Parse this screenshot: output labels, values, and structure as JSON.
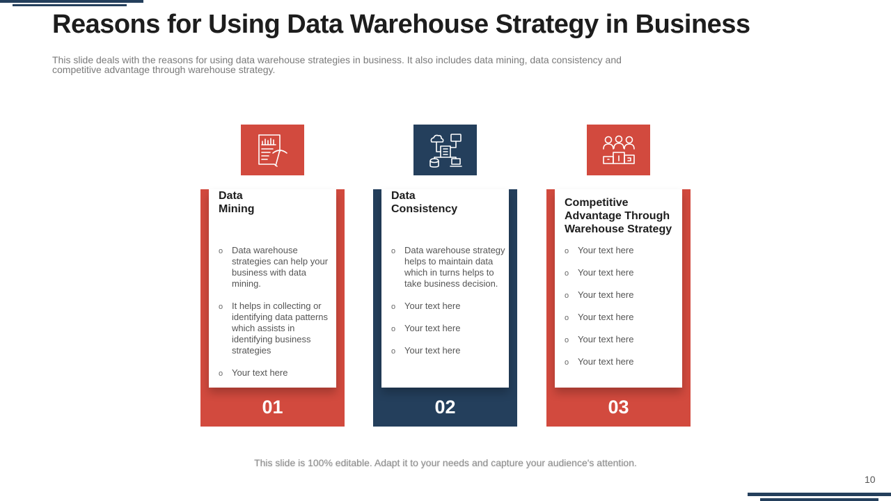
{
  "slide": {
    "title": "Reasons for Using Data Warehouse Strategy in Business",
    "subtitle": "This slide deals with the reasons for using data warehouse strategies in business. It also includes data mining, data consistency and competitive advantage through warehouse strategy.",
    "footer": "This slide is 100% editable. Adapt it to your needs and capture your audience's attention.",
    "page_number": "10"
  },
  "colors": {
    "red": "#d24a3e",
    "navy": "#243f5c"
  },
  "cards": [
    {
      "number": "01",
      "title": "Data\nMining",
      "icon": "data-mining-icon",
      "color": "red",
      "bullets": [
        "Data warehouse strategies can help your business with data mining.",
        "It helps in collecting or identifying data patterns which assists in identifying business strategies",
        "Your text here"
      ]
    },
    {
      "number": "02",
      "title": "Data\nConsistency",
      "icon": "data-network-icon",
      "color": "navy",
      "bullets": [
        "Data warehouse strategy helps  to maintain data which in turns helps to take business decision.",
        "Your text here",
        "Your text here",
        "Your text here"
      ]
    },
    {
      "number": "03",
      "title": "Competitive\nAdvantage Through\nWarehouse Strategy",
      "icon": "team-podium-icon",
      "color": "red",
      "bullets": [
        "Your text here",
        "Your text here",
        "Your text here",
        "Your text here",
        "Your text here",
        "Your text here"
      ]
    }
  ],
  "bullet_glyph": "o"
}
